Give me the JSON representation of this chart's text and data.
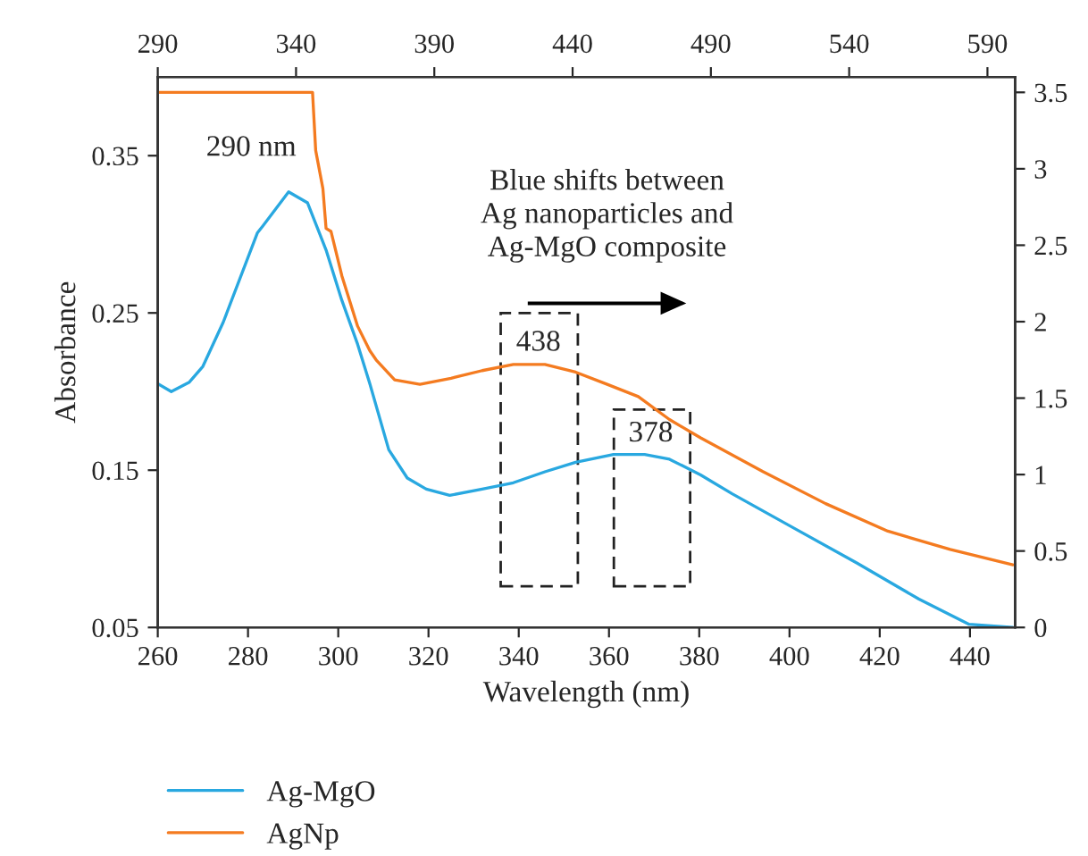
{
  "chart_data": {
    "type": "line",
    "xlabel": "Wavelength (nm)",
    "ylabel": "Absorbance",
    "xlim": [
      260,
      450
    ],
    "xticks": [
      260,
      280,
      300,
      320,
      340,
      360,
      380,
      400,
      420,
      440
    ],
    "x2lim": [
      290,
      600
    ],
    "x2ticks": [
      290,
      340,
      390,
      440,
      490,
      540,
      590
    ],
    "ylim": [
      0.05,
      0.4
    ],
    "yticks": [
      0.05,
      0.15,
      0.25,
      0.35
    ],
    "y2lim": [
      0,
      3.6
    ],
    "y2ticks": [
      0,
      0.5,
      1,
      1.5,
      2,
      2.5,
      3,
      3.5
    ],
    "grid": false,
    "legend": "bottom",
    "marker": "none",
    "line_style": "solid",
    "series": [
      {
        "name": "Ag-MgO",
        "color": "#29a8e0",
        "x": [
          260,
          263,
          267,
          270,
          274.5,
          282.1,
          283.2,
          289,
          293.2,
          297.3,
          300.8,
          304.3,
          307,
          311.2,
          315.3,
          319.5,
          324.7,
          331.9,
          338.8,
          345.8,
          352.6,
          361,
          367.9,
          373.4,
          380.3,
          387.3,
          401.1,
          414.9,
          428.7,
          439.8,
          449.5
        ],
        "values": [
          0.205,
          0.2,
          0.206,
          0.216,
          0.244,
          0.301,
          0.305,
          0.327,
          0.32,
          0.29,
          0.258,
          0.23,
          0.205,
          0.163,
          0.145,
          0.138,
          0.134,
          0.138,
          0.142,
          0.149,
          0.155,
          0.16,
          0.16,
          0.157,
          0.147,
          0.135,
          0.113,
          0.091,
          0.068,
          0.052,
          0.05
        ]
      },
      {
        "name": "AgNp",
        "color": "#f47b20",
        "axis": "y2",
        "x": [
          260,
          294.3,
          295,
          296.6,
          297.3,
          298.4,
          300.8,
          304.3,
          307,
          308.4,
          312.5,
          318.1,
          325,
          331.9,
          338.8,
          345.8,
          352.6,
          359.6,
          366.5,
          373.4,
          380.3,
          394.1,
          408,
          421.8,
          435.6,
          449.5
        ],
        "values": [
          3.5,
          3.5,
          3.12,
          2.87,
          2.61,
          2.59,
          2.3,
          1.97,
          1.81,
          1.75,
          1.62,
          1.59,
          1.63,
          1.68,
          1.72,
          1.72,
          1.67,
          1.59,
          1.51,
          1.36,
          1.24,
          1.02,
          0.81,
          0.63,
          0.51,
          0.41
        ]
      }
    ],
    "annotations": [
      "290 nm",
      "Blue shifts between\nAg nanoparticles and\nAg-MgO composite",
      "438",
      "378"
    ]
  }
}
